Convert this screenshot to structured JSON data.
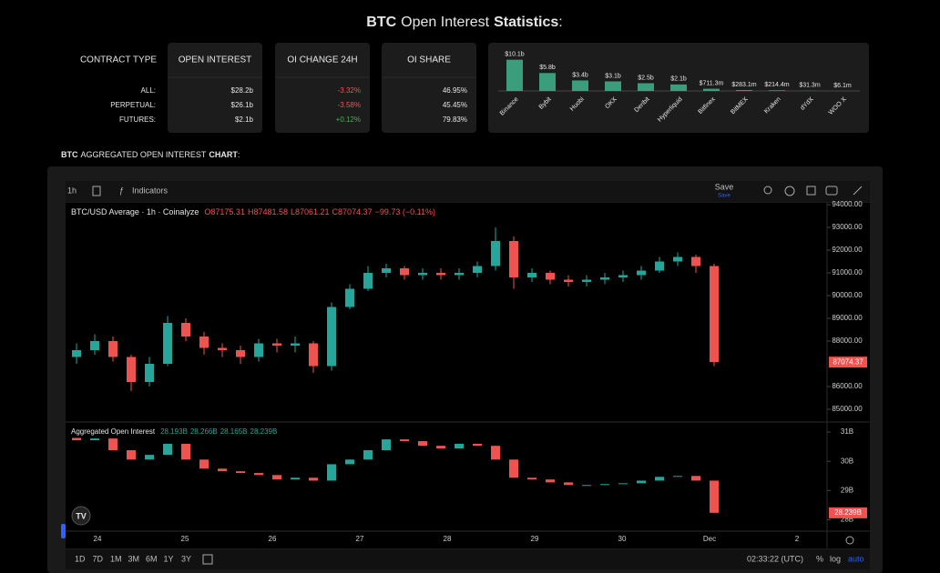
{
  "header": {
    "title_parts": [
      "BTC",
      "Open Interest",
      "Statistics",
      ":"
    ]
  },
  "stats_table": {
    "columns": [
      "CONTRACT TYPE",
      "OPEN INTEREST",
      "OI CHANGE 24H",
      "OI SHARE"
    ],
    "rows": [
      [
        "ALL:",
        "$28.2b",
        "-3.32%",
        "46.95%"
      ],
      [
        "PERPETUAL:",
        "$26.1b",
        "-3.58%",
        "45.45%"
      ],
      [
        "FUTURES:",
        "$2.1b",
        "+0.12%",
        "79.83%"
      ]
    ]
  },
  "section_heading_parts": [
    "BTC",
    "AGGREGATED OPEN INTEREST",
    "CHART",
    ":"
  ],
  "toolbar": {
    "interval": "1h",
    "indicators": "Indicators",
    "save": "Save",
    "save_sub": "Save"
  },
  "bottom_bar": {
    "ranges": [
      "1D",
      "7D",
      "1M",
      "3M",
      "6M",
      "1Y",
      "3Y"
    ],
    "clock": "02:33:22 (UTC)",
    "percent": "%",
    "log": "log",
    "auto": "auto"
  },
  "chart_data": [
    {
      "type": "bar",
      "categories": [
        "Binance",
        "Bybit",
        "Huobi",
        "OKX",
        "Deribit",
        "Hyperliquid",
        "Bitfinex",
        "BitMEX",
        "Kraken",
        "dYdX",
        "WOO X"
      ],
      "values": [
        10.1,
        5.8,
        3.4,
        3.1,
        2.5,
        2.1,
        0.7113,
        0.2831,
        0.2144,
        0.0313,
        0.0061
      ],
      "value_labels": [
        "$10.1b",
        "$5.8b",
        "$3.4b",
        "$3.1b",
        "$2.5b",
        "$2.1b",
        "$711.3m",
        "$283.1m",
        "$214.4m",
        "$31.3m",
        "$6.1m"
      ],
      "color": "#3a9d7c"
    },
    {
      "type": "candlestick",
      "title": "BTC/USD Average · 1h · Coinalyze",
      "legend": [
        "O87175.31",
        "H87481.58",
        "L87061.21",
        "C87074.37",
        "−99.73 (−0.11%)"
      ],
      "legend_color": "#ef5350",
      "x_labels": [
        "24",
        "25",
        "26",
        "27",
        "28",
        "29",
        "30",
        "Dec",
        "2"
      ],
      "open": [
        87300,
        87600,
        88000,
        87300,
        86200,
        87000,
        88800,
        88200,
        87700,
        87600,
        87300,
        87900,
        87800,
        87900,
        86900,
        89500,
        90300,
        91000,
        91200,
        90900,
        91000,
        90900,
        91000,
        91300,
        92400,
        90800,
        91000,
        90700,
        90600,
        90700,
        90800,
        90900,
        91100,
        91500,
        91700,
        91300
      ],
      "high": [
        87900,
        88300,
        88200,
        87400,
        87300,
        89100,
        89000,
        88400,
        87900,
        87800,
        88100,
        88100,
        88200,
        88000,
        89700,
        90500,
        91300,
        91400,
        91300,
        91200,
        91200,
        91200,
        91500,
        93000,
        92600,
        91200,
        91100,
        90900,
        90900,
        91000,
        91100,
        91300,
        91700,
        91900,
        91800,
        91400
      ],
      "low": [
        87000,
        87400,
        87100,
        85800,
        86000,
        86900,
        88000,
        87400,
        87300,
        87000,
        87100,
        87500,
        87500,
        86600,
        86700,
        89400,
        90200,
        90800,
        90700,
        90700,
        90700,
        90700,
        90800,
        91100,
        90300,
        90600,
        90500,
        90400,
        90400,
        90500,
        90600,
        90700,
        91000,
        91300,
        91000,
        86900
      ],
      "close": [
        87600,
        88000,
        87300,
        86200,
        87000,
        88800,
        88200,
        87700,
        87600,
        87300,
        87900,
        87800,
        87900,
        86900,
        89500,
        90300,
        91000,
        91200,
        90900,
        91000,
        90900,
        91000,
        91300,
        92400,
        90800,
        91000,
        90700,
        90600,
        90700,
        90800,
        90900,
        91100,
        91500,
        91700,
        91300,
        87074.37
      ],
      "ylim": [
        84500,
        94000
      ],
      "yticks": [
        {
          "value": 94000,
          "label": "94000.00"
        },
        {
          "value": 93000,
          "label": "93000.00"
        },
        {
          "value": 92000,
          "label": "92000.00"
        },
        {
          "value": 91000,
          "label": "91000.00"
        },
        {
          "value": 90000,
          "label": "90000.00"
        },
        {
          "value": 89000,
          "label": "89000.00"
        },
        {
          "value": 88000,
          "label": "88000.00"
        },
        {
          "value": 86000,
          "label": "86000.00"
        },
        {
          "value": 85000,
          "label": "85000.00"
        }
      ],
      "last_label": "87074.37",
      "up_color": "#26a69a",
      "down_color": "#ef5350"
    },
    {
      "type": "candlestick",
      "title": "Aggregated Open Interest",
      "legend": [
        "28.193B",
        "28.266B",
        "28.165B",
        "28.239B"
      ],
      "legend_color": "#26a69a",
      "open": [
        30.8,
        30.72,
        30.78,
        30.38,
        30.06,
        30.22,
        30.6,
        30.06,
        29.75,
        29.66,
        29.6,
        29.53,
        29.38,
        29.44,
        29.34,
        29.9,
        30.06,
        30.38,
        30.75,
        30.69,
        30.53,
        30.44,
        30.6,
        30.53,
        30.06,
        29.44,
        29.38,
        29.28,
        29.19,
        29.19,
        29.22,
        29.25,
        29.34,
        29.47,
        29.5,
        29.34
      ],
      "close": [
        30.72,
        30.78,
        30.38,
        30.06,
        30.22,
        30.6,
        30.06,
        29.75,
        29.66,
        29.6,
        29.53,
        29.38,
        29.44,
        29.34,
        29.9,
        30.06,
        30.38,
        30.75,
        30.69,
        30.53,
        30.44,
        30.6,
        30.53,
        30.06,
        29.44,
        29.38,
        29.28,
        29.19,
        29.19,
        29.22,
        29.25,
        29.34,
        29.47,
        29.5,
        29.34,
        28.239
      ],
      "ylim": [
        27.625,
        31.25
      ],
      "yticks": [
        {
          "value": 31,
          "label": "31B"
        },
        {
          "value": 30,
          "label": "30B"
        },
        {
          "value": 29,
          "label": "29B"
        },
        {
          "value": 28,
          "label": "28B"
        }
      ],
      "last_label": "28.239B",
      "up_color": "#26a69a",
      "down_color": "#ef5350"
    }
  ]
}
